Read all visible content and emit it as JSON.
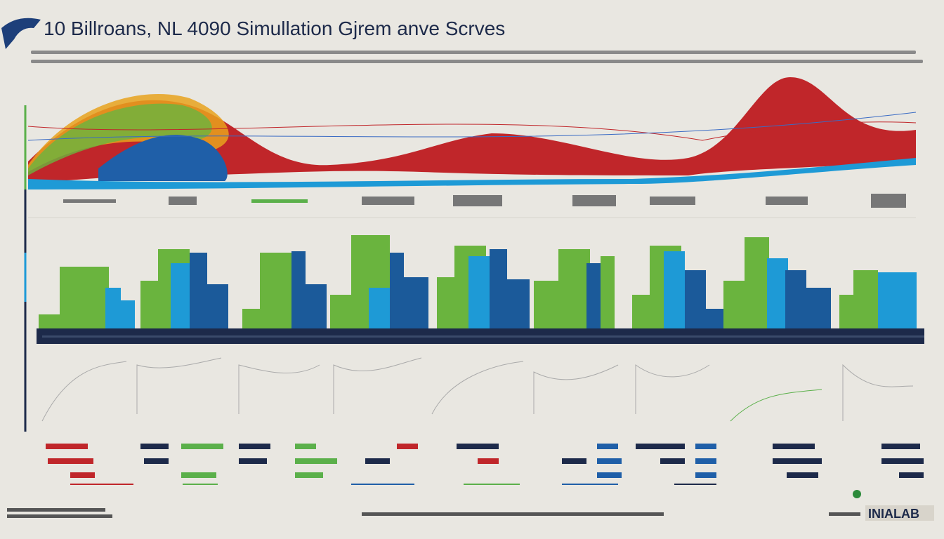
{
  "header": {
    "title": "10 Billroans, NL 4090 Simullation Gjrem anve Scrves"
  },
  "footer": {
    "brand": "INIALAB"
  }
}
